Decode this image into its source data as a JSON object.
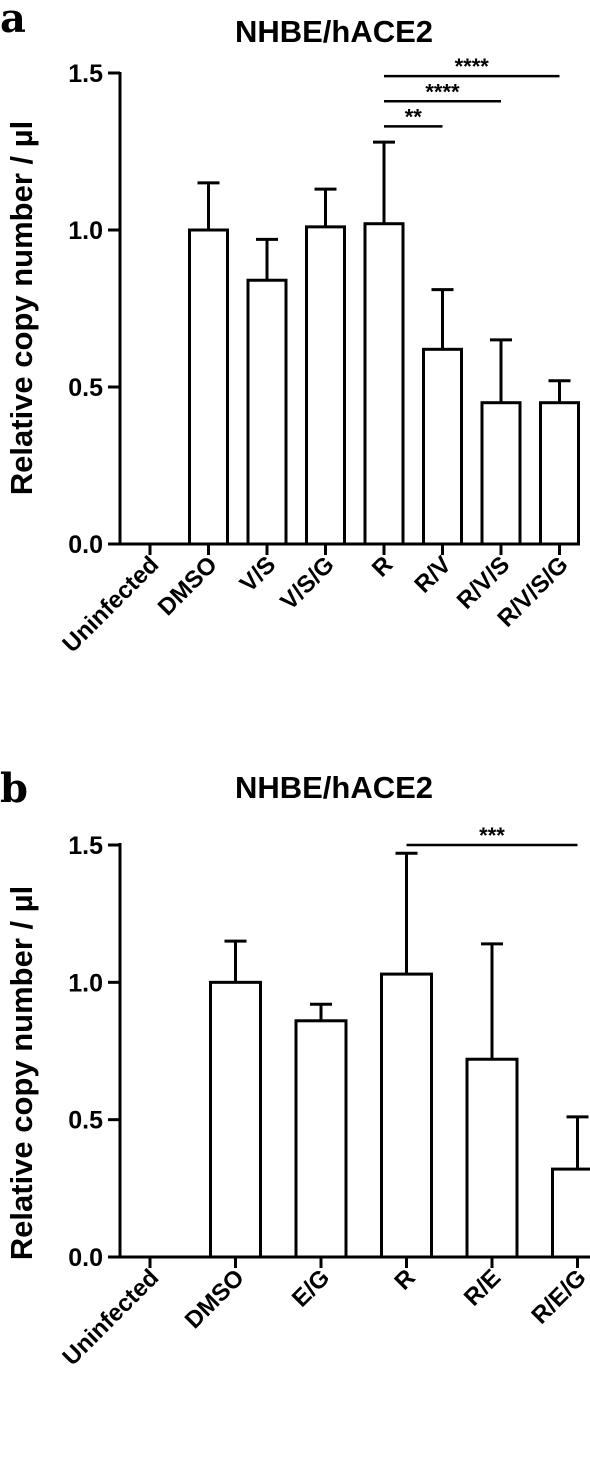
{
  "chart_data": [
    {
      "type": "bar",
      "panel": "a",
      "title": "NHBE/hACE2",
      "ylabel": "Relative copy number / µl",
      "ylim": [
        0,
        1.5
      ],
      "yticks": [
        "0.0",
        "0.5",
        "1.0",
        "1.5"
      ],
      "tick_values": [
        0,
        0.5,
        1.0,
        1.5
      ],
      "categories": [
        "Uninfected",
        "DMSO",
        "V/S",
        "V/S/G",
        "R",
        "R/V",
        "R/V/S",
        "R/V/S/G"
      ],
      "values": [
        0,
        1.0,
        0.84,
        1.01,
        1.02,
        0.62,
        0.45,
        0.45
      ],
      "errors": [
        0,
        0.15,
        0.13,
        0.12,
        0.26,
        0.19,
        0.2,
        0.07
      ],
      "significance": [
        {
          "from": "R",
          "to": "R/V",
          "label": "**",
          "y": 1.33
        },
        {
          "from": "R",
          "to": "R/V/S",
          "label": "****",
          "y": 1.41
        },
        {
          "from": "R",
          "to": "R/V/S/G",
          "label": "****",
          "y": 1.49
        }
      ]
    },
    {
      "type": "bar",
      "panel": "b",
      "title": "NHBE/hACE2",
      "ylabel": "Relative copy number / µl",
      "ylim": [
        0,
        1.5
      ],
      "yticks": [
        "0.0",
        "0.5",
        "1.0",
        "1.5"
      ],
      "tick_values": [
        0,
        0.5,
        1.0,
        1.5
      ],
      "categories": [
        "Uninfected",
        "DMSO",
        "E/G",
        "R",
        "R/E",
        "R/E/G"
      ],
      "values": [
        0,
        1.0,
        0.86,
        1.03,
        0.72,
        0.32
      ],
      "errors": [
        0,
        0.15,
        0.06,
        0.44,
        0.42,
        0.19
      ],
      "significance": [
        {
          "from": "R",
          "to": "R/E/G",
          "label": "***",
          "y": 1.5
        }
      ]
    }
  ]
}
